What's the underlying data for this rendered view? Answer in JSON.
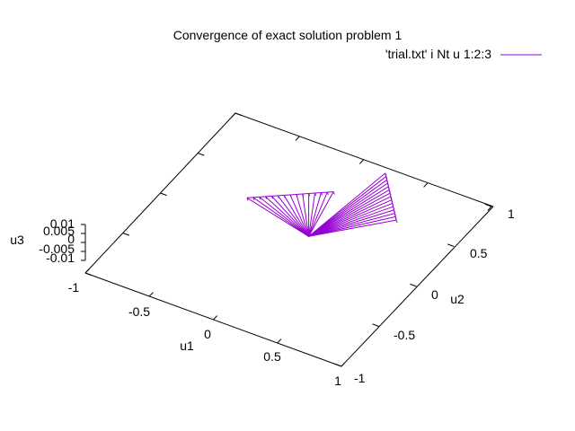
{
  "chart_data": {
    "type": "line",
    "title": "Convergence of exact solution problem 1",
    "xlabel": "u1",
    "ylabel": "u2",
    "zlabel": "u3",
    "xlim": [
      -1,
      1
    ],
    "ylim": [
      -1,
      1
    ],
    "zlim": [
      -0.01,
      0.01
    ],
    "x_ticks": [
      "-1",
      "-0.5",
      "0",
      "0.5",
      "1"
    ],
    "y_ticks": [
      "-1",
      "-0.5",
      "0",
      "0.5",
      "1"
    ],
    "z_ticks": [
      "-0.01",
      "-0.005",
      "0",
      "0.005",
      "0.01"
    ],
    "grid": false,
    "legend_position": "top-right",
    "series": [
      {
        "name": "'trial.txt' i Nt u 1:2:3",
        "color": "#9400d3",
        "fan": {
          "apex": [
            0.1,
            0.1,
            0
          ],
          "left_edge": [
            [
              -0.47,
              0.25,
              0
            ],
            [
              0.0,
              0.6,
              0
            ]
          ],
          "right_edge": [
            [
              0.52,
              0.55,
              0
            ],
            [
              0.2,
              0.95,
              0
            ]
          ],
          "rays_per_edge": 15
        }
      }
    ]
  }
}
